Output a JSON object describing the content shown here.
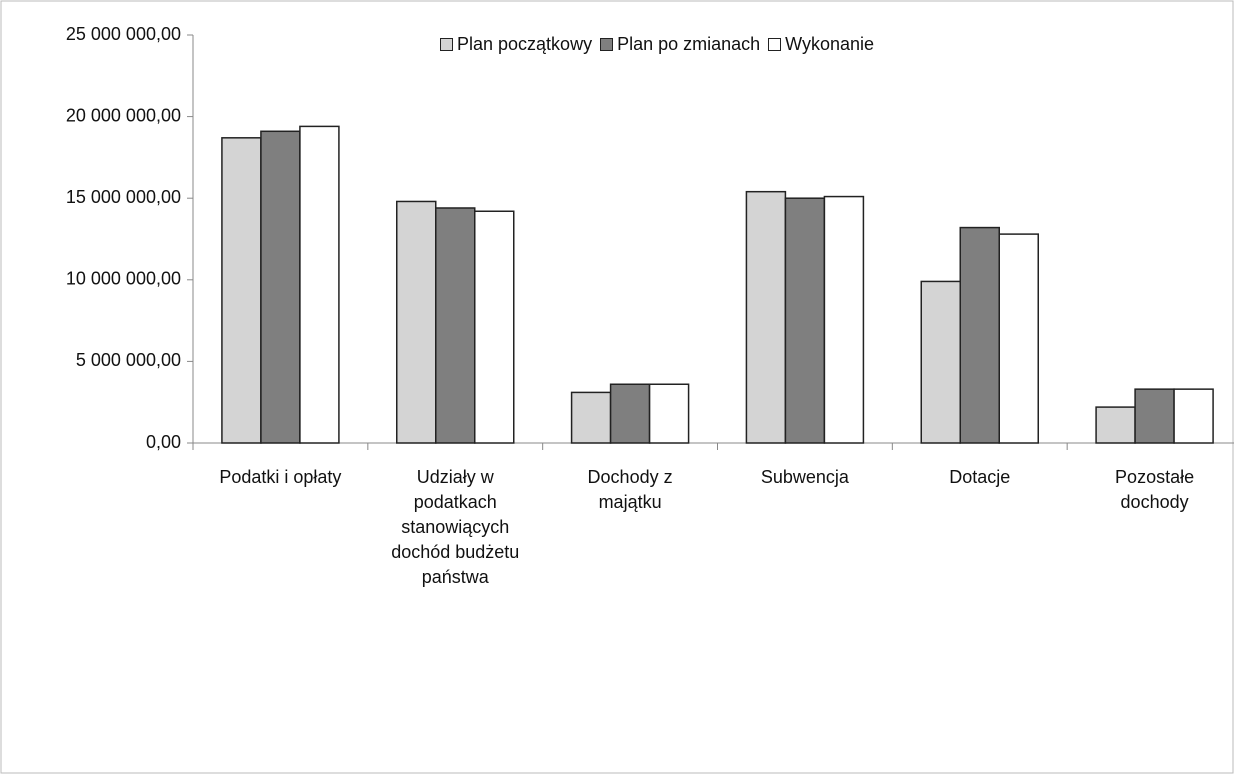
{
  "chart_data": {
    "type": "bar",
    "categories": [
      "Podatki i opłaty",
      "Udziały w podatkach stanowiących dochód budżetu państwa",
      "Dochody z majątku",
      "Subwencja",
      "Dotacje",
      "Pozostałe dochody"
    ],
    "series": [
      {
        "name": "Plan początkowy",
        "color": "#d4d4d4",
        "values": [
          18700000,
          14800000,
          3100000,
          15400000,
          9900000,
          2200000
        ]
      },
      {
        "name": "Plan po zmianach",
        "color": "#7f7f7f",
        "values": [
          19100000,
          14400000,
          3600000,
          15000000,
          13200000,
          3300000
        ]
      },
      {
        "name": "Wykonanie",
        "color": "#ffffff",
        "values": [
          19400000,
          14200000,
          3600000,
          15100000,
          12800000,
          3300000
        ]
      }
    ],
    "ylim": [
      0,
      25000000
    ],
    "yticks": [
      {
        "value": 0,
        "label": "0,00"
      },
      {
        "value": 5000000,
        "label": "5 000 000,00"
      },
      {
        "value": 10000000,
        "label": "10 000 000,00"
      },
      {
        "value": 15000000,
        "label": "15 000 000,00"
      },
      {
        "value": 20000000,
        "label": "20 000 000,00"
      },
      {
        "value": 25000000,
        "label": "25 000 000,00"
      }
    ]
  }
}
